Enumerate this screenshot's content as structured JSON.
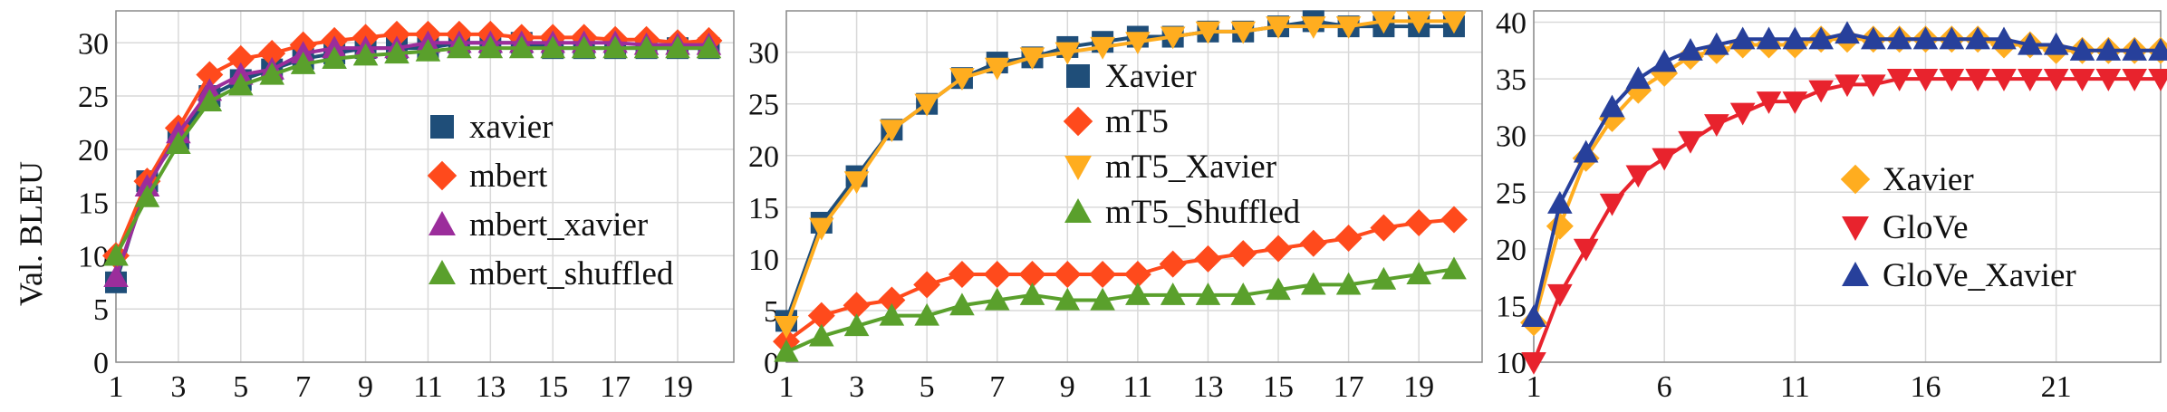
{
  "chart_data": [
    {
      "type": "line",
      "ylabel": "Val. BLEU",
      "x": [
        1,
        2,
        3,
        4,
        5,
        6,
        7,
        8,
        9,
        10,
        11,
        12,
        13,
        14,
        15,
        16,
        17,
        18,
        19,
        20
      ],
      "xticks": [
        1,
        3,
        5,
        7,
        9,
        11,
        13,
        15,
        17,
        19
      ],
      "ylim": [
        0,
        33
      ],
      "yticks": [
        0,
        5,
        10,
        15,
        20,
        25,
        30
      ],
      "grid": true,
      "legend_position": "center-right",
      "series": [
        {
          "name": "xavier",
          "color": "#1f4e79",
          "marker": "square",
          "values": [
            7.5,
            17,
            21,
            25,
            26.5,
            27.5,
            28.5,
            29,
            29.5,
            29.5,
            29.5,
            30,
            30,
            30,
            29.5,
            29.5,
            29.5,
            29.5,
            29.5,
            29.5
          ]
        },
        {
          "name": "mbert",
          "color": "#ff4a1c",
          "marker": "diamond",
          "values": [
            10,
            17,
            22,
            27,
            28.5,
            29,
            29.8,
            30.2,
            30.5,
            30.8,
            30.8,
            30.8,
            30.8,
            30.5,
            30.5,
            30.5,
            30.3,
            30.3,
            30,
            30.2
          ]
        },
        {
          "name": "mbert_xavier",
          "color": "#9b2d9b",
          "marker": "triangle-up",
          "values": [
            8,
            16.5,
            21.5,
            25.5,
            27,
            27.5,
            29,
            29.5,
            29.5,
            29.5,
            30,
            30,
            30,
            30,
            30,
            30,
            30,
            29.8,
            29.8,
            29.8
          ]
        },
        {
          "name": "mbert_shuffled",
          "color": "#5aa02c",
          "marker": "triangle-up",
          "values": [
            10,
            15.5,
            20.5,
            24.5,
            26,
            27,
            28,
            28.5,
            28.8,
            29,
            29.2,
            29.5,
            29.5,
            29.5,
            29.5,
            29.5,
            29.5,
            29.5,
            29.5,
            29.5
          ]
        }
      ]
    },
    {
      "type": "line",
      "x": [
        1,
        2,
        3,
        4,
        5,
        6,
        7,
        8,
        9,
        10,
        11,
        12,
        13,
        14,
        15,
        16,
        17,
        18,
        19,
        20
      ],
      "xticks": [
        1,
        3,
        5,
        7,
        9,
        11,
        13,
        15,
        17,
        19
      ],
      "ylim": [
        0,
        34
      ],
      "yticks": [
        0,
        5,
        10,
        15,
        20,
        25,
        30
      ],
      "grid": true,
      "legend_position": "top-center",
      "series": [
        {
          "name": "Xavier",
          "color": "#1f4e79",
          "marker": "square",
          "values": [
            4,
            13.5,
            18,
            22.5,
            25,
            27.5,
            29,
            29.5,
            30.5,
            31,
            31.5,
            31.5,
            32,
            32,
            32.5,
            33,
            32.5,
            32.5,
            32.5,
            32.5
          ]
        },
        {
          "name": "mT5",
          "color": "#ff4a1c",
          "marker": "diamond",
          "values": [
            2,
            4.5,
            5.5,
            6,
            7.5,
            8.5,
            8.5,
            8.5,
            8.5,
            8.5,
            8.5,
            9.5,
            10,
            10.5,
            11,
            11.5,
            12,
            13,
            13.5,
            13.8
          ]
        },
        {
          "name": "mT5_Xavier",
          "color": "#ffad1f",
          "marker": "triangle-down",
          "values": [
            3.5,
            13,
            17.5,
            22.5,
            25,
            27.5,
            28.5,
            29.5,
            30,
            30.5,
            31,
            31.5,
            32,
            32,
            32.5,
            32.5,
            32.5,
            33,
            33,
            33
          ]
        },
        {
          "name": "mT5_Shuffled",
          "color": "#5aa02c",
          "marker": "triangle-up",
          "values": [
            1,
            2.5,
            3.5,
            4.5,
            4.5,
            5.5,
            6,
            6.5,
            6,
            6,
            6.5,
            6.5,
            6.5,
            6.5,
            7,
            7.5,
            7.5,
            8,
            8.5,
            9
          ]
        }
      ]
    },
    {
      "type": "line",
      "x": [
        1,
        2,
        3,
        4,
        5,
        6,
        7,
        8,
        9,
        10,
        11,
        12,
        13,
        14,
        15,
        16,
        17,
        18,
        19,
        20,
        21,
        22,
        23,
        24,
        25
      ],
      "xticks": [
        1,
        6,
        11,
        16,
        21
      ],
      "ylim": [
        10,
        41
      ],
      "yticks": [
        10,
        15,
        20,
        25,
        30,
        35,
        40
      ],
      "grid": true,
      "legend_position": "center-right",
      "series": [
        {
          "name": "Xavier",
          "color": "#ffad1f",
          "marker": "diamond",
          "values": [
            13.5,
            22,
            28,
            31.5,
            34,
            35.5,
            37,
            37.5,
            38,
            38,
            38,
            38.5,
            38.5,
            38.5,
            38.5,
            38.5,
            38.5,
            38.5,
            38,
            38,
            37.5,
            37.5,
            37.5,
            37.5,
            37.5
          ]
        },
        {
          "name": "GloVe",
          "color": "#e8232d",
          "marker": "triangle-down",
          "values": [
            10,
            16,
            20,
            24,
            26.5,
            28,
            29.5,
            31,
            32,
            33,
            33,
            34,
            34.5,
            34.5,
            35,
            35,
            35,
            35,
            35,
            35,
            35,
            35,
            35,
            35,
            35
          ]
        },
        {
          "name": "GloVe_Xavier",
          "color": "#27409b",
          "marker": "triangle-up",
          "values": [
            14,
            24,
            28.5,
            32.5,
            35,
            36.5,
            37.5,
            38,
            38.5,
            38.5,
            38.5,
            38.5,
            39,
            38.5,
            38.5,
            38.5,
            38.5,
            38.5,
            38.5,
            38,
            38,
            37.5,
            37.5,
            37.5,
            37.5
          ]
        }
      ]
    }
  ]
}
